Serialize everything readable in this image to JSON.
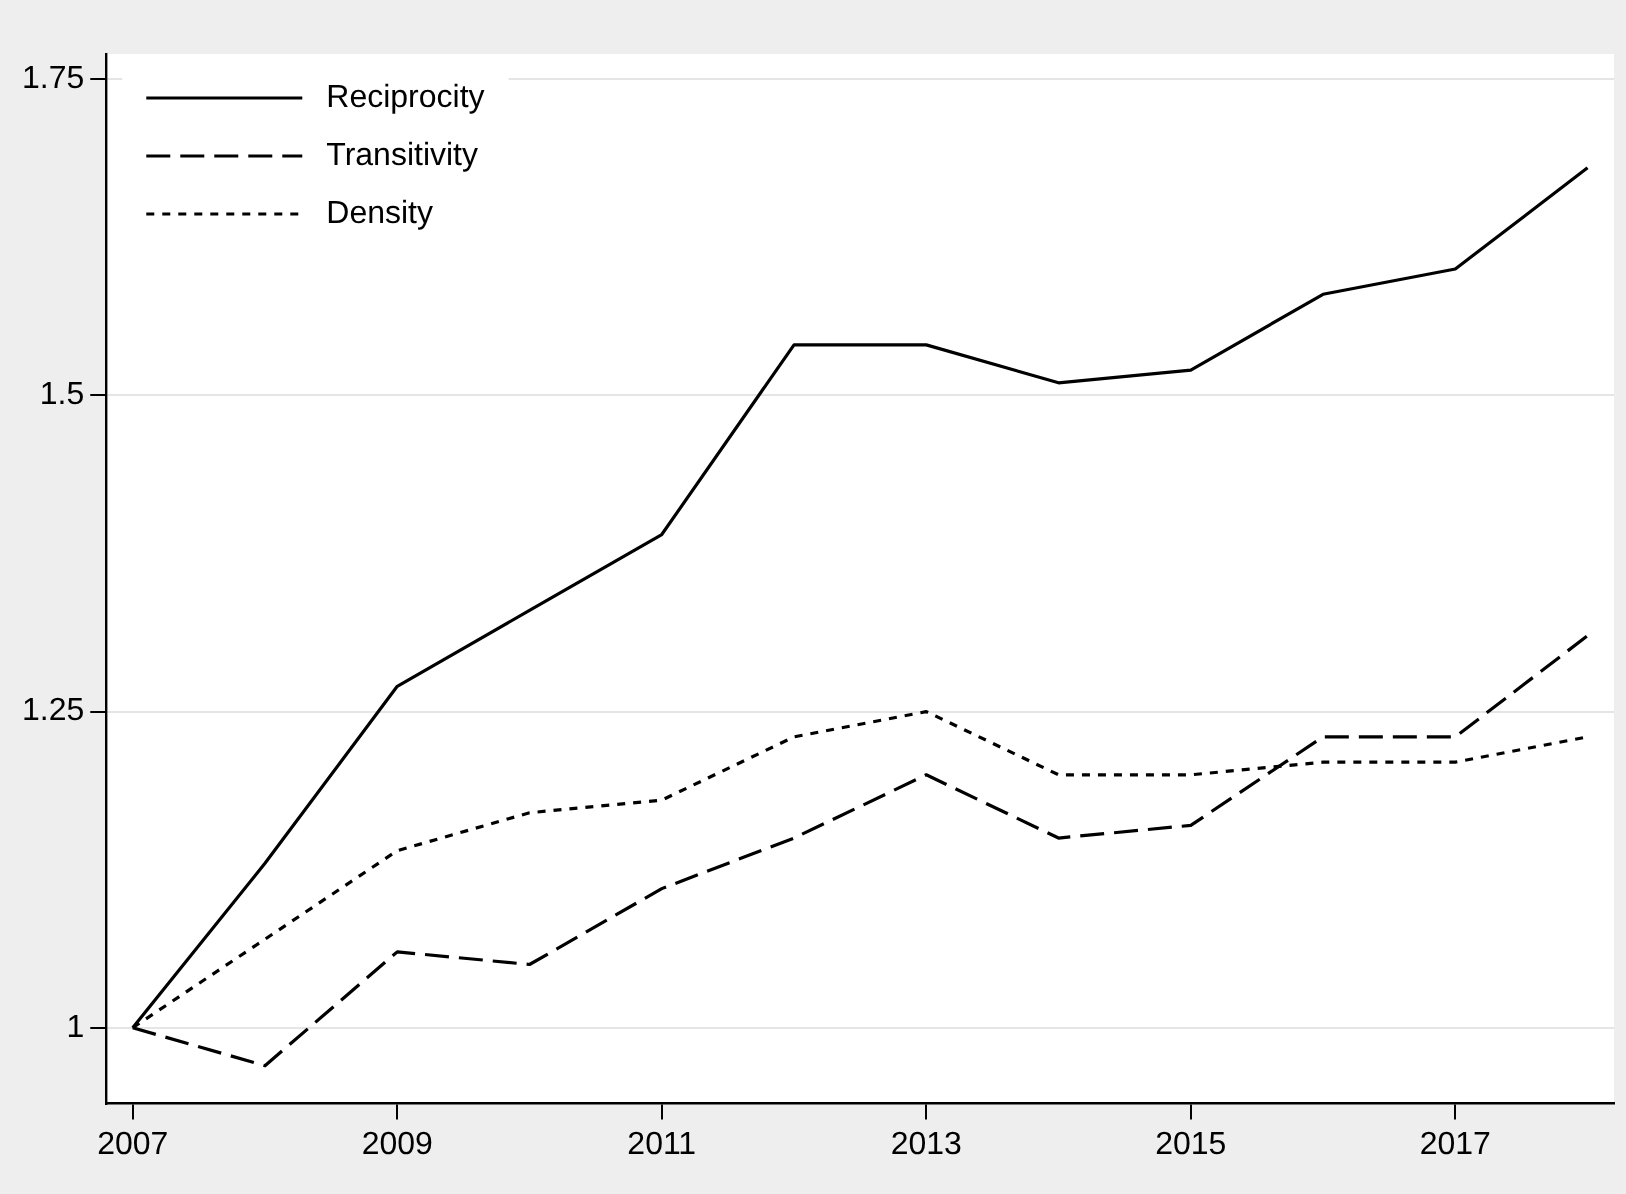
{
  "chart_data": {
    "type": "line",
    "x": [
      2007,
      2008,
      2009,
      2010,
      2011,
      2012,
      2013,
      2014,
      2015,
      2016,
      2017,
      2018
    ],
    "series": [
      {
        "name": "Reciprocity",
        "color": "#000000",
        "line_style": "solid",
        "values": [
          1,
          1.13,
          1.27,
          1.33,
          1.39,
          1.54,
          1.54,
          1.51,
          1.52,
          1.58,
          1.6,
          1.68
        ]
      },
      {
        "name": "Transitivity",
        "color": "#000000",
        "line_style": "dashed",
        "values": [
          1,
          0.97,
          1.06,
          1.05,
          1.11,
          1.15,
          1.2,
          1.15,
          1.16,
          1.23,
          1.23,
          1.31
        ]
      },
      {
        "name": "Density",
        "color": "#000000",
        "line_style": "dotted",
        "values": [
          1,
          1.07,
          1.14,
          1.17,
          1.18,
          1.23,
          1.25,
          1.2,
          1.2,
          1.21,
          1.21,
          1.23
        ]
      }
    ],
    "xlim": [
      2006.8,
      2018.2
    ],
    "xticks": [
      2007,
      2009,
      2011,
      2013,
      2015,
      2017
    ],
    "ylim": [
      0.94,
      1.77
    ],
    "yticks": [
      1,
      1.25,
      1.5,
      1.75
    ],
    "grid": "y",
    "legend": "top left",
    "marker": "none"
  }
}
